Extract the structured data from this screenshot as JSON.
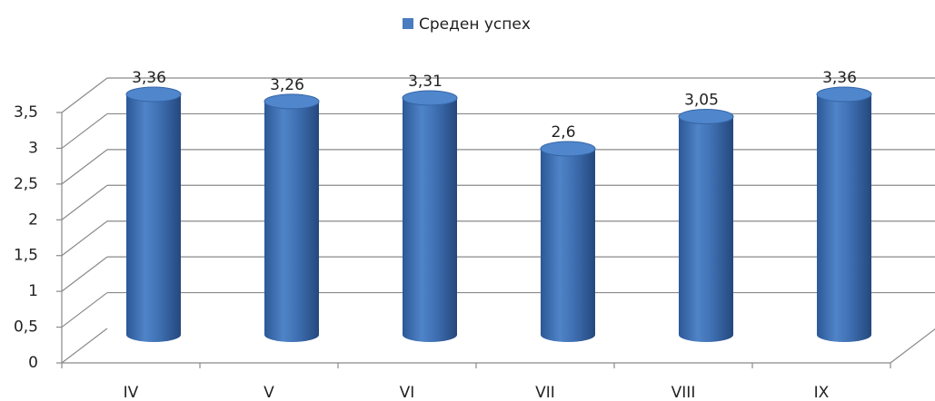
{
  "chart_data": {
    "type": "bar",
    "categories": [
      "IV",
      "V",
      "VI",
      "VII",
      "VIII",
      "IX"
    ],
    "series": [
      {
        "name": "Среден успех",
        "color": "#4a7cc0",
        "values": [
          3.36,
          3.26,
          3.31,
          2.6,
          3.05,
          3.36
        ],
        "value_labels": [
          "3,36",
          "3,26",
          "3,31",
          "2,6",
          "3,05",
          "3,36"
        ]
      }
    ],
    "ylim": [
      0,
      3.5
    ],
    "yticks": [
      0,
      {
        "value": 0.5,
        "label": "0,5"
      },
      1,
      {
        "value": 1.5,
        "label": "1,5"
      },
      2,
      {
        "value": 2.5,
        "label": "2,5"
      },
      3,
      {
        "value": 3.5,
        "label": "3,5"
      }
    ],
    "grid": true,
    "legend": "top"
  }
}
